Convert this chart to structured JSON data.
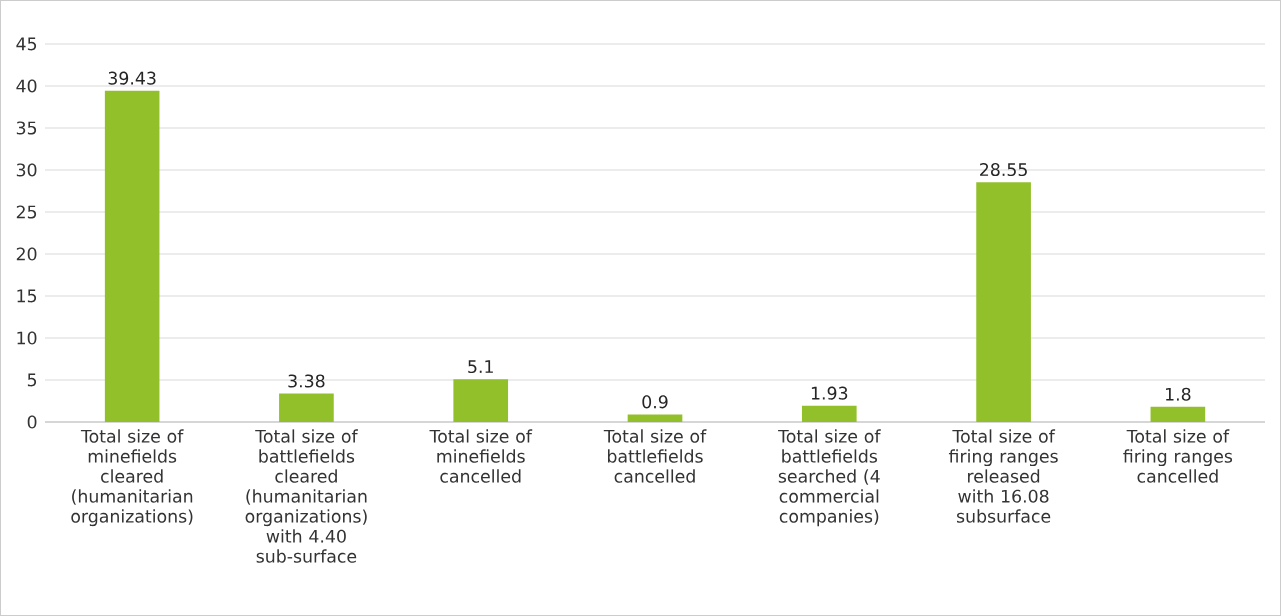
{
  "chart_data": {
    "type": "bar",
    "categories": [
      "Total size of minefields cleared (humanitarian organizations)",
      "Total size of battlefields cleared (humanitarian organizations) with 4.40 sub-surface",
      "Total size of minefields cancelled",
      "Total size of battlefields cancelled",
      "Total size of battlefields searched (4 commercial companies)",
      "Total size of firing ranges released with 16.08 subsurface",
      "Total size of firing ranges cancelled"
    ],
    "values": [
      39.43,
      3.38,
      5.1,
      0.9,
      1.93,
      28.55,
      1.8
    ],
    "color": "#92c02b",
    "ylim": [
      0,
      45
    ],
    "yticks": [
      0,
      5,
      10,
      15,
      20,
      25,
      30,
      35,
      40,
      45
    ],
    "grid": "y",
    "data_labels": true
  }
}
